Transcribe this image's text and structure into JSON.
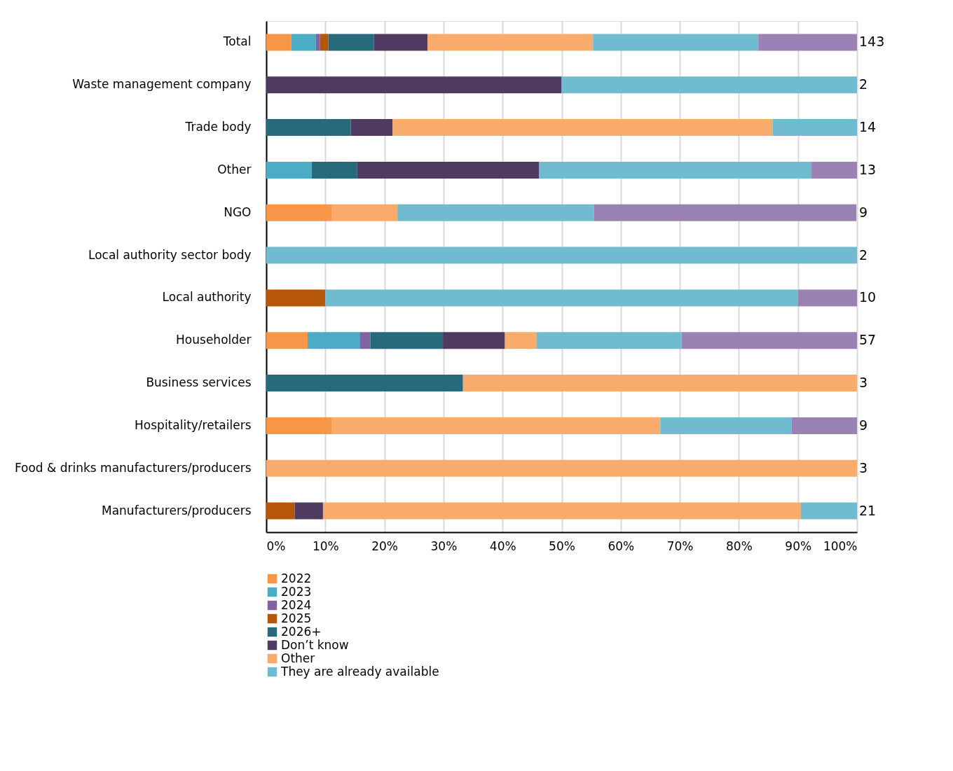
{
  "chart_data": {
    "type": "bar",
    "orientation": "horizontal",
    "stacked": true,
    "categories": [
      "Total",
      "Waste management company",
      "Trade body",
      "Other",
      "NGO",
      "Local authority sector body",
      "Local authority",
      "Householder",
      "Business services",
      "Hospitality/retailers",
      "Food & drinks manufacturers/producers",
      "Manufacturers/producers"
    ],
    "series": [
      {
        "name": "2022",
        "color": "#f79646",
        "values": [
          4.2,
          null,
          null,
          null,
          11.1,
          null,
          null,
          7.0,
          null,
          11.1,
          null,
          null
        ]
      },
      {
        "name": "2023",
        "color": "#4bacc6",
        "values": [
          4.2,
          null,
          null,
          7.7,
          null,
          null,
          null,
          8.8,
          null,
          null,
          null,
          null
        ]
      },
      {
        "name": "2024",
        "color": "#8064a2",
        "values": [
          0.7,
          null,
          null,
          null,
          null,
          null,
          null,
          1.8,
          null,
          null,
          null,
          null
        ]
      },
      {
        "name": "2025",
        "color": "#b65708",
        "values": [
          1.4,
          null,
          null,
          null,
          null,
          null,
          10,
          null,
          null,
          null,
          null,
          4.8
        ]
      },
      {
        "name": "2026+",
        "color": "#276a7c",
        "values": [
          7.7,
          null,
          14.3,
          7.7,
          null,
          null,
          null,
          12.3,
          33.3,
          null,
          null,
          null
        ]
      },
      {
        "name": "Don’t know",
        "color": "#4f3b62",
        "values": [
          9.1,
          50,
          7.1,
          30.8,
          null,
          null,
          null,
          10.5,
          null,
          null,
          null,
          4.8
        ]
      },
      {
        "name": "Other",
        "color": "#f9ab6b",
        "values": [
          28.0,
          null,
          64.3,
          null,
          11.1,
          null,
          null,
          5.3,
          66.7,
          55.6,
          100,
          80.9
        ]
      },
      {
        "name": "They are already available",
        "color": "#71bbd1",
        "values": [
          28.0,
          50,
          14.3,
          46.1,
          33.3,
          100,
          80,
          24.6,
          null,
          22.2,
          null,
          9.5
        ]
      },
      {
        "color": "#9a82b4",
        "values": [
          16.7,
          null,
          null,
          7.7,
          44.4,
          null,
          10,
          29.7,
          null,
          11.1,
          null,
          null
        ]
      }
    ],
    "annotations": [
      "143",
      "2",
      "14",
      "13",
      "9",
      "2",
      "10",
      "57",
      "3",
      "9",
      "3",
      "21"
    ],
    "xlim": [
      0,
      100
    ],
    "xticks": [
      {
        "value": 0,
        "label": "0%"
      },
      {
        "value": 10,
        "label": "10%"
      },
      {
        "value": 20,
        "label": "20%"
      },
      {
        "value": 30,
        "label": "30%"
      },
      {
        "value": 40,
        "label": "40%"
      },
      {
        "value": 50,
        "label": "50%"
      },
      {
        "value": 60,
        "label": "60%"
      },
      {
        "value": 70,
        "label": "70%"
      },
      {
        "value": 80,
        "label": "80%"
      },
      {
        "value": 90,
        "label": "90%"
      },
      {
        "value": 100,
        "label": "100%"
      }
    ],
    "grid": "x",
    "legend": "bottom left"
  }
}
